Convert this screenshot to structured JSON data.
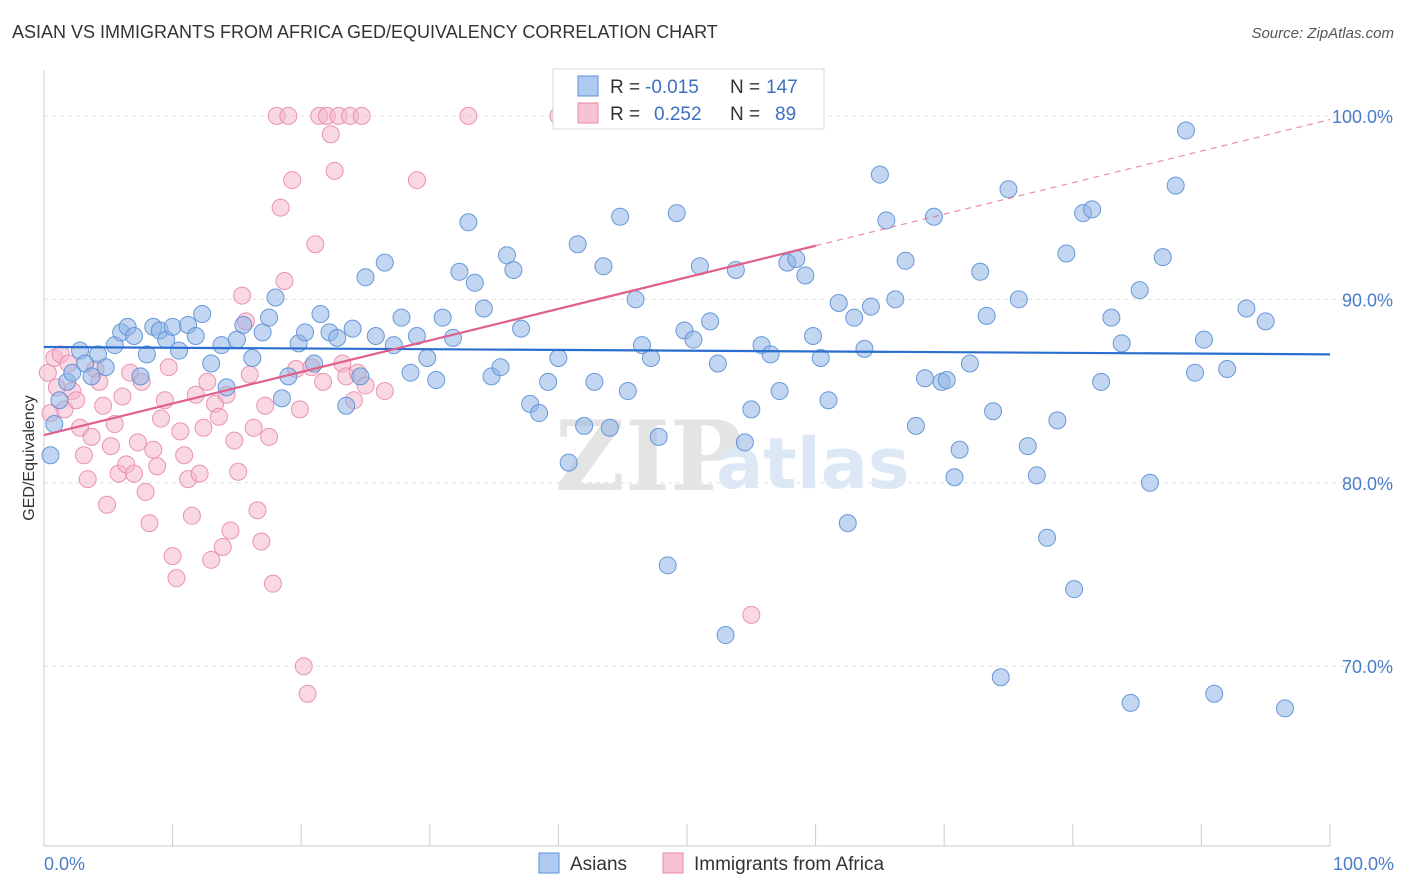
{
  "chart_data": {
    "type": "scatter",
    "title": "ASIAN VS IMMIGRANTS FROM AFRICA GED/EQUIVALENCY CORRELATION CHART",
    "source": "Source: ZipAtlas.com",
    "ylabel": "GED/Equivalency",
    "xlabel": "",
    "xlim": [
      0,
      100
    ],
    "ylim": [
      60.2,
      102.5
    ],
    "x_tick_labels": [
      "0.0%",
      "100.0%"
    ],
    "y_ticks": [
      {
        "value": 100,
        "label": "100.0%"
      },
      {
        "value": 90,
        "label": "90.0%"
      },
      {
        "value": 80,
        "label": "80.0%"
      },
      {
        "value": 70,
        "label": "70.0%"
      }
    ],
    "watermark": {
      "zip": "ZIP",
      "atlas": "atlas"
    },
    "legend": [
      {
        "r_label": "R =",
        "r_value": "-0.015",
        "n_label": "N =",
        "n_value": "147"
      },
      {
        "r_label": "R =",
        "r_value": "0.252",
        "n_label": "N =",
        "n_value": "89"
      }
    ],
    "series": [
      {
        "name": "Asians",
        "color": "#8fb4e6",
        "edge": "#5b8fd6",
        "line_color": "#2a6fcf",
        "trend": {
          "x0": 0,
          "y0": 87.4,
          "x1": 100,
          "y1": 87.0,
          "dashed_from": null
        },
        "points": [
          [
            0.5,
            81.5
          ],
          [
            0.8,
            83.2
          ],
          [
            1.2,
            84.5
          ],
          [
            1.8,
            85.5
          ],
          [
            2.2,
            86.0
          ],
          [
            2.8,
            87.2
          ],
          [
            3.2,
            86.5
          ],
          [
            3.7,
            85.8
          ],
          [
            4.2,
            87.0
          ],
          [
            4.8,
            86.3
          ],
          [
            5.5,
            87.5
          ],
          [
            6.0,
            88.2
          ],
          [
            6.5,
            88.5
          ],
          [
            7.0,
            88.0
          ],
          [
            7.5,
            85.8
          ],
          [
            8.0,
            87.0
          ],
          [
            8.5,
            88.5
          ],
          [
            9.0,
            88.3
          ],
          [
            9.5,
            87.8
          ],
          [
            10.0,
            88.5
          ],
          [
            10.5,
            87.2
          ],
          [
            11.2,
            88.6
          ],
          [
            11.8,
            88.0
          ],
          [
            12.3,
            89.2
          ],
          [
            13.0,
            86.5
          ],
          [
            13.8,
            87.5
          ],
          [
            14.2,
            85.2
          ],
          [
            15.0,
            87.8
          ],
          [
            15.5,
            88.6
          ],
          [
            16.2,
            86.8
          ],
          [
            17.0,
            88.2
          ],
          [
            17.5,
            89.0
          ],
          [
            18.0,
            90.1
          ],
          [
            18.5,
            84.6
          ],
          [
            19.0,
            85.8
          ],
          [
            19.8,
            87.6
          ],
          [
            20.3,
            88.2
          ],
          [
            21.0,
            86.5
          ],
          [
            21.5,
            89.2
          ],
          [
            22.2,
            88.2
          ],
          [
            22.8,
            87.9
          ],
          [
            23.5,
            84.2
          ],
          [
            24.0,
            88.4
          ],
          [
            24.6,
            85.8
          ],
          [
            25.0,
            91.2
          ],
          [
            25.8,
            88.0
          ],
          [
            26.5,
            92.0
          ],
          [
            27.2,
            87.5
          ],
          [
            27.8,
            89.0
          ],
          [
            28.5,
            86.0
          ],
          [
            29.0,
            88.0
          ],
          [
            29.8,
            86.8
          ],
          [
            30.5,
            85.6
          ],
          [
            31.0,
            89.0
          ],
          [
            31.8,
            87.9
          ],
          [
            32.3,
            91.5
          ],
          [
            33.0,
            94.2
          ],
          [
            33.5,
            90.9
          ],
          [
            34.2,
            89.5
          ],
          [
            34.8,
            85.8
          ],
          [
            35.5,
            86.3
          ],
          [
            36.0,
            92.4
          ],
          [
            36.5,
            91.6
          ],
          [
            37.1,
            88.4
          ],
          [
            37.8,
            84.3
          ],
          [
            38.5,
            83.8
          ],
          [
            39.2,
            85.5
          ],
          [
            40.0,
            86.8
          ],
          [
            40.8,
            81.1
          ],
          [
            41.5,
            93.0
          ],
          [
            42.0,
            83.1
          ],
          [
            42.8,
            85.5
          ],
          [
            43.5,
            91.8
          ],
          [
            44.0,
            83.0
          ],
          [
            44.8,
            94.5
          ],
          [
            45.4,
            85.0
          ],
          [
            46.0,
            90.0
          ],
          [
            46.5,
            87.5
          ],
          [
            47.2,
            86.8
          ],
          [
            47.8,
            82.5
          ],
          [
            48.5,
            75.5
          ],
          [
            49.2,
            94.7
          ],
          [
            49.8,
            88.3
          ],
          [
            50.5,
            87.8
          ],
          [
            51.0,
            91.8
          ],
          [
            51.8,
            88.8
          ],
          [
            52.4,
            86.5
          ],
          [
            53.0,
            71.7
          ],
          [
            53.8,
            91.6
          ],
          [
            54.5,
            82.2
          ],
          [
            55.0,
            84.0
          ],
          [
            55.8,
            87.5
          ],
          [
            56.5,
            87.0
          ],
          [
            57.2,
            85.0
          ],
          [
            57.8,
            92.0
          ],
          [
            58.5,
            92.2
          ],
          [
            59.2,
            91.3
          ],
          [
            59.8,
            88.0
          ],
          [
            60.4,
            86.8
          ],
          [
            61.0,
            84.5
          ],
          [
            61.8,
            89.8
          ],
          [
            62.5,
            77.8
          ],
          [
            63.0,
            89.0
          ],
          [
            63.8,
            87.3
          ],
          [
            64.3,
            89.6
          ],
          [
            65.0,
            96.8
          ],
          [
            65.5,
            94.3
          ],
          [
            66.2,
            90.0
          ],
          [
            67.0,
            92.1
          ],
          [
            67.8,
            83.1
          ],
          [
            68.5,
            85.7
          ],
          [
            69.2,
            94.5
          ],
          [
            69.8,
            85.5
          ],
          [
            70.2,
            85.6
          ],
          [
            70.8,
            80.3
          ],
          [
            71.2,
            81.8
          ],
          [
            72.0,
            86.5
          ],
          [
            72.8,
            91.5
          ],
          [
            73.3,
            89.1
          ],
          [
            73.8,
            83.9
          ],
          [
            74.4,
            69.4
          ],
          [
            75.0,
            96.0
          ],
          [
            75.8,
            90.0
          ],
          [
            76.5,
            82.0
          ],
          [
            77.2,
            80.4
          ],
          [
            78.0,
            77.0
          ],
          [
            78.8,
            83.4
          ],
          [
            79.5,
            92.5
          ],
          [
            80.1,
            74.2
          ],
          [
            80.8,
            94.7
          ],
          [
            81.5,
            94.9
          ],
          [
            82.2,
            85.5
          ],
          [
            83.0,
            89.0
          ],
          [
            83.8,
            87.6
          ],
          [
            84.5,
            68.0
          ],
          [
            85.2,
            90.5
          ],
          [
            86.0,
            80.0
          ],
          [
            87.0,
            92.3
          ],
          [
            88.0,
            96.2
          ],
          [
            88.8,
            99.2
          ],
          [
            89.5,
            86.0
          ],
          [
            90.2,
            87.8
          ],
          [
            91.0,
            68.5
          ],
          [
            92.0,
            86.2
          ],
          [
            93.5,
            89.5
          ],
          [
            95.0,
            88.8
          ],
          [
            96.5,
            67.7
          ]
        ]
      },
      {
        "name": "Immigrants from Africa",
        "color": "#f4b8cc",
        "edge": "#e88aa8",
        "line_color": "#e0608c",
        "trend": {
          "x0": 0,
          "y0": 82.6,
          "x1": 100,
          "y1": 99.8,
          "dashed_from": 60
        },
        "points": [
          [
            0.3,
            86.0
          ],
          [
            0.5,
            83.8
          ],
          [
            0.8,
            86.8
          ],
          [
            1.0,
            85.2
          ],
          [
            1.3,
            87.0
          ],
          [
            1.6,
            84.0
          ],
          [
            1.9,
            86.5
          ],
          [
            2.2,
            85.0
          ],
          [
            2.5,
            84.5
          ],
          [
            2.8,
            83.0
          ],
          [
            3.1,
            81.5
          ],
          [
            3.4,
            80.2
          ],
          [
            3.7,
            82.5
          ],
          [
            4.0,
            86.2
          ],
          [
            4.3,
            85.5
          ],
          [
            4.6,
            84.2
          ],
          [
            4.9,
            78.8
          ],
          [
            5.2,
            82.0
          ],
          [
            5.5,
            83.2
          ],
          [
            5.8,
            80.5
          ],
          [
            6.1,
            84.7
          ],
          [
            6.4,
            81.0
          ],
          [
            6.7,
            86.0
          ],
          [
            7.0,
            80.5
          ],
          [
            7.3,
            82.2
          ],
          [
            7.6,
            85.5
          ],
          [
            7.9,
            79.5
          ],
          [
            8.2,
            77.8
          ],
          [
            8.5,
            81.8
          ],
          [
            8.8,
            80.9
          ],
          [
            9.1,
            83.5
          ],
          [
            9.4,
            84.5
          ],
          [
            9.7,
            86.3
          ],
          [
            10.0,
            76.0
          ],
          [
            10.3,
            74.8
          ],
          [
            10.6,
            82.8
          ],
          [
            10.9,
            81.5
          ],
          [
            11.2,
            80.2
          ],
          [
            11.5,
            78.2
          ],
          [
            11.8,
            84.8
          ],
          [
            12.1,
            80.5
          ],
          [
            12.4,
            83.0
          ],
          [
            12.7,
            85.5
          ],
          [
            13.0,
            75.8
          ],
          [
            13.3,
            84.3
          ],
          [
            13.6,
            83.6
          ],
          [
            13.9,
            76.5
          ],
          [
            14.2,
            84.8
          ],
          [
            14.5,
            77.4
          ],
          [
            14.8,
            82.3
          ],
          [
            15.1,
            80.6
          ],
          [
            15.4,
            90.2
          ],
          [
            15.7,
            88.8
          ],
          [
            16.0,
            85.9
          ],
          [
            16.3,
            83.0
          ],
          [
            16.6,
            78.5
          ],
          [
            16.9,
            76.8
          ],
          [
            17.2,
            84.2
          ],
          [
            17.5,
            82.5
          ],
          [
            17.8,
            74.5
          ],
          [
            18.1,
            100.0
          ],
          [
            18.4,
            95.0
          ],
          [
            18.7,
            91.0
          ],
          [
            19.0,
            100.0
          ],
          [
            19.3,
            96.5
          ],
          [
            19.6,
            86.2
          ],
          [
            19.9,
            84.0
          ],
          [
            20.2,
            70.0
          ],
          [
            20.5,
            68.5
          ],
          [
            20.8,
            86.3
          ],
          [
            21.1,
            93.0
          ],
          [
            21.4,
            100.0
          ],
          [
            21.7,
            85.5
          ],
          [
            22.0,
            100.0
          ],
          [
            22.3,
            99.0
          ],
          [
            22.6,
            97.0
          ],
          [
            22.9,
            100.0
          ],
          [
            23.2,
            86.5
          ],
          [
            23.5,
            85.8
          ],
          [
            23.8,
            100.0
          ],
          [
            24.1,
            84.5
          ],
          [
            24.4,
            86.0
          ],
          [
            24.7,
            100.0
          ],
          [
            25.0,
            85.3
          ],
          [
            26.5,
            85.0
          ],
          [
            29.0,
            96.5
          ],
          [
            33.0,
            100.0
          ],
          [
            40.0,
            100.0
          ],
          [
            55.0,
            72.8
          ]
        ]
      }
    ]
  },
  "bottom_legend": [
    "Asians",
    "Immigrants from Africa"
  ]
}
